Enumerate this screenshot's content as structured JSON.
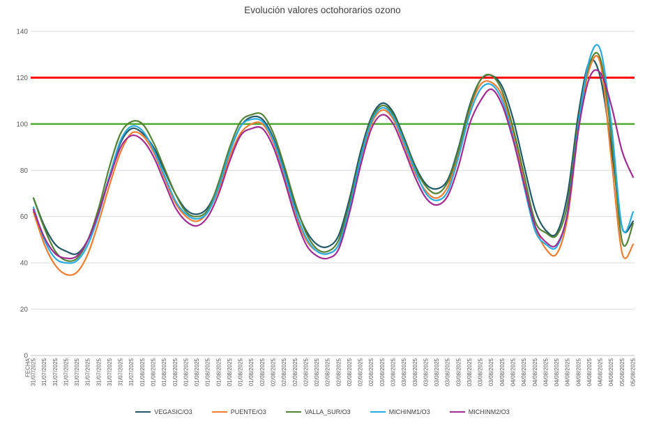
{
  "chart_data": {
    "type": "line",
    "title": "Evolución valores octohorarios ozono",
    "x_axis_title": "FECHA",
    "ylabel": "",
    "ylim": [
      0,
      140
    ],
    "yticks": [
      0,
      20,
      40,
      60,
      80,
      100,
      120,
      140
    ],
    "grid": true,
    "legend_position": "bottom",
    "colors": {
      "grid": "#D9D9D9",
      "axis_line": "#BFBFBF",
      "axis_text": "#595959",
      "title_text": "#404040"
    },
    "reference_lines": [
      {
        "y": 120,
        "color": "#FF0000",
        "width": 3
      },
      {
        "y": 100,
        "color": "#4EA72E",
        "width": 2.5
      }
    ],
    "x_labels": [
      "31/07/2025",
      "31/07/2025",
      "31/07/2025",
      "31/07/2025",
      "31/07/2025",
      "31/07/2025",
      "31/07/2025",
      "31/07/2025",
      "31/07/2025",
      "31/07/2025",
      "01/08/2025",
      "01/08/2025",
      "01/08/2025",
      "01/08/2025",
      "01/08/2025",
      "01/08/2025",
      "01/08/2025",
      "01/08/2025",
      "01/08/2025",
      "01/08/2025",
      "01/08/2025",
      "02/08/2025",
      "02/08/2025",
      "02/08/2025",
      "02/08/2025",
      "02/08/2025",
      "02/08/2025",
      "02/08/2025",
      "02/08/2025",
      "02/08/2025",
      "02/08/2025",
      "02/08/2025",
      "03/08/2025",
      "03/08/2025",
      "03/08/2025",
      "03/08/2025",
      "03/08/2025",
      "03/08/2025",
      "03/08/2025",
      "03/08/2025",
      "03/08/2025",
      "03/08/2025",
      "03/08/2025",
      "04/08/2025",
      "04/08/2025",
      "04/08/2025",
      "04/08/2025",
      "04/08/2025",
      "04/08/2025",
      "04/08/2025",
      "04/08/2025",
      "04/08/2025",
      "04/08/2025",
      "04/08/2025",
      "05/08/2025",
      "05/08/2025"
    ],
    "series": [
      {
        "name": "VEGASIC/O3",
        "color": "#205867",
        "values": [
          68,
          56,
          48,
          45,
          44,
          50,
          62,
          78,
          92,
          98,
          96,
          90,
          80,
          70,
          63,
          61,
          64,
          74,
          88,
          99,
          103,
          102,
          94,
          80,
          65,
          54,
          48,
          47,
          52,
          68,
          88,
          103,
          109,
          105,
          94,
          82,
          74,
          72,
          76,
          90,
          108,
          119,
          121,
          116,
          102,
          82,
          63,
          54,
          53,
          70,
          105,
          127,
          120,
          90,
          55,
          58
        ]
      },
      {
        "name": "PUENTE/O3",
        "color": "#ED7D31",
        "values": [
          62,
          48,
          39,
          35,
          36,
          44,
          58,
          74,
          88,
          96,
          95,
          88,
          77,
          66,
          60,
          58,
          62,
          72,
          86,
          96,
          100,
          100,
          92,
          78,
          62,
          50,
          45,
          44,
          48,
          64,
          84,
          100,
          106,
          102,
          91,
          79,
          71,
          68,
          73,
          88,
          106,
          117,
          118,
          112,
          96,
          75,
          56,
          46,
          44,
          60,
          98,
          124,
          126,
          85,
          44,
          48
        ]
      },
      {
        "name": "VALLA_SUR/O3",
        "color": "#548235",
        "values": [
          68,
          55,
          45,
          41,
          42,
          50,
          64,
          82,
          96,
          101,
          100,
          92,
          81,
          70,
          62,
          60,
          63,
          75,
          90,
          101,
          104,
          104,
          96,
          82,
          66,
          53,
          46,
          45,
          50,
          66,
          86,
          102,
          108,
          104,
          93,
          81,
          73,
          70,
          75,
          89,
          107,
          119,
          121,
          114,
          98,
          78,
          58,
          53,
          52,
          66,
          102,
          126,
          128,
          95,
          49,
          57
        ]
      },
      {
        "name": "MICHINM1/O3",
        "color": "#29ABE2",
        "values": [
          64,
          50,
          42,
          40,
          41,
          48,
          61,
          78,
          93,
          99,
          97,
          89,
          78,
          67,
          61,
          59,
          62,
          73,
          88,
          99,
          102,
          101,
          93,
          79,
          63,
          51,
          45,
          44,
          48,
          64,
          85,
          101,
          107,
          103,
          92,
          80,
          70,
          67,
          71,
          86,
          104,
          115,
          117,
          110,
          94,
          73,
          54,
          48,
          47,
          62,
          100,
          128,
          132,
          100,
          55,
          62
        ]
      },
      {
        "name": "MICHINM2/O3",
        "color": "#A02B93",
        "values": [
          63,
          51,
          44,
          42,
          43,
          50,
          62,
          77,
          90,
          95,
          93,
          86,
          75,
          64,
          58,
          56,
          60,
          70,
          84,
          95,
          98,
          98,
          90,
          76,
          60,
          48,
          43,
          42,
          46,
          62,
          82,
          98,
          104,
          100,
          89,
          77,
          68,
          65,
          69,
          82,
          100,
          110,
          115,
          108,
          93,
          74,
          56,
          49,
          48,
          62,
          98,
          120,
          122,
          108,
          88,
          77
        ]
      }
    ]
  }
}
